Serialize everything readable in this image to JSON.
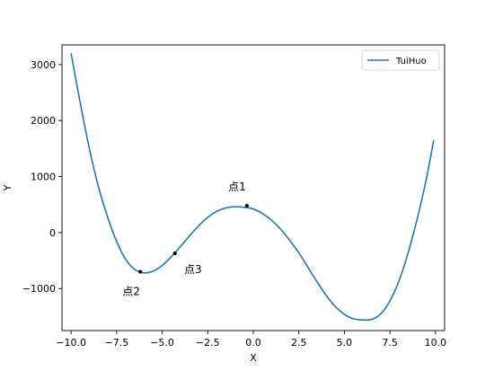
{
  "chart_data": {
    "type": "line",
    "xlabel": "X",
    "ylabel": "Y",
    "xlim": [
      -10.5,
      10.5
    ],
    "ylim": [
      -1750,
      3350
    ],
    "grid": false,
    "legend_placement": "top-right",
    "x_ticks": [
      -10.0,
      -7.5,
      -5.0,
      -2.5,
      0.0,
      2.5,
      5.0,
      7.5,
      10.0
    ],
    "x_tick_labels": [
      "−10.0",
      "−7.5",
      "−5.0",
      "−2.5",
      "0.0",
      "2.5",
      "5.0",
      "7.5",
      "10.0"
    ],
    "y_ticks": [
      -1000,
      0,
      1000,
      2000,
      3000
    ],
    "y_tick_labels": [
      "−1000",
      "0",
      "1000",
      "2000",
      "3000"
    ],
    "series": [
      {
        "name": "TuiHuo",
        "color": "#1f77b4",
        "x": [
          -10.0,
          -9.5,
          -9.0,
          -8.5,
          -8.0,
          -7.5,
          -7.0,
          -6.5,
          -6.0,
          -5.5,
          -5.0,
          -4.5,
          -4.0,
          -3.5,
          -3.0,
          -2.5,
          -2.0,
          -1.5,
          -1.0,
          -0.5,
          0.0,
          0.5,
          1.0,
          1.5,
          2.0,
          2.5,
          3.0,
          3.5,
          4.0,
          4.5,
          5.0,
          5.5,
          6.0,
          6.5,
          7.0,
          7.5,
          8.0,
          8.5,
          9.0,
          9.5,
          9.9
        ],
        "y": [
          3200,
          2320,
          1500,
          820,
          280,
          -160,
          -480,
          -660,
          -720,
          -690,
          -590,
          -430,
          -250,
          -60,
          120,
          270,
          380,
          440,
          460,
          450,
          420,
          340,
          220,
          60,
          -140,
          -360,
          -620,
          -880,
          -1120,
          -1320,
          -1460,
          -1540,
          -1560,
          -1550,
          -1450,
          -1220,
          -860,
          -360,
          250,
          960,
          1650
        ]
      }
    ],
    "points": [
      {
        "x": -0.35,
        "y": 480,
        "label": "点1"
      },
      {
        "x": -6.2,
        "y": -700,
        "label": "点2"
      },
      {
        "x": -4.3,
        "y": -370,
        "label": "点3"
      }
    ]
  }
}
